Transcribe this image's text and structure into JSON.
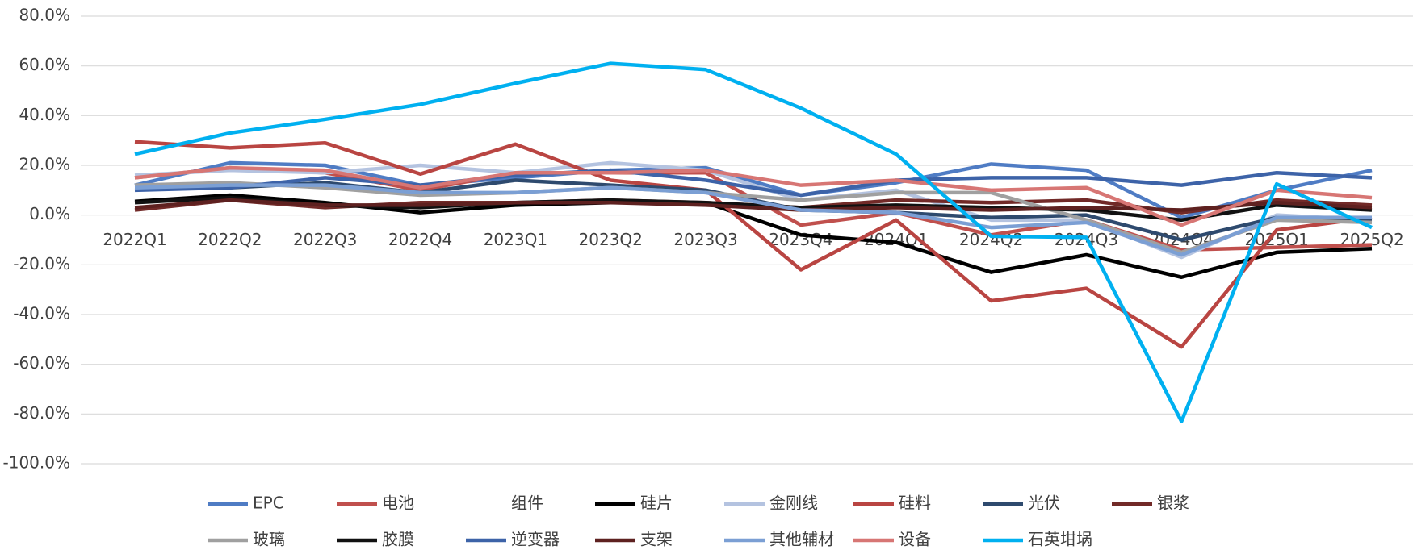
{
  "chart_data": {
    "type": "line",
    "categories": [
      "2022Q1",
      "2022Q2",
      "2022Q3",
      "2022Q4",
      "2023Q1",
      "2023Q2",
      "2023Q3",
      "2023Q4",
      "2024Q1",
      "2024Q2",
      "2024Q3",
      "2024Q4",
      "2025Q1",
      "2025Q2"
    ],
    "ylim": [
      -100,
      80
    ],
    "yticks": [
      {
        "value": -100,
        "label": "-100.0%"
      },
      {
        "value": -80,
        "label": "-80.0%"
      },
      {
        "value": -60,
        "label": "-60.0%"
      },
      {
        "value": -40,
        "label": "-40.0%"
      },
      {
        "value": -20,
        "label": "-20.0%"
      },
      {
        "value": 0,
        "label": "0.0%"
      },
      {
        "value": 20,
        "label": "20.0%"
      },
      {
        "value": 40,
        "label": "40.0%"
      },
      {
        "value": 60,
        "label": "60.0%"
      },
      {
        "value": 80,
        "label": "80.0%"
      }
    ],
    "grid": true,
    "legend": "bottom",
    "series": [
      {
        "name": "EPC",
        "color": "#4f7cc4",
        "values": [
          12,
          21,
          20,
          12,
          15,
          18,
          19,
          8,
          13,
          20.5,
          18,
          -1,
          10,
          18
        ]
      },
      {
        "name": "电池",
        "color": "#c0504d",
        "values": [
          15,
          19,
          17,
          10,
          17,
          17,
          17,
          -4,
          1,
          -8,
          -2,
          -14,
          -13,
          -12
        ]
      },
      {
        "name": "组件",
        "color": "#ffffff",
        "values": [
          null,
          null,
          null,
          null,
          null,
          null,
          null,
          null,
          null,
          null,
          null,
          null,
          null,
          null
        ]
      },
      {
        "name": "硅片",
        "color": "#000000",
        "values": [
          5.5,
          8,
          5,
          1,
          4,
          5,
          5,
          -8,
          -11,
          -23,
          -16,
          -25,
          -15,
          -13.5
        ]
      },
      {
        "name": "金刚线",
        "color": "#b4c3e0",
        "values": [
          16,
          18,
          17,
          20,
          17,
          21,
          18,
          6,
          10,
          -2,
          -2,
          -17,
          0,
          -2
        ]
      },
      {
        "name": "硅料",
        "color": "#b94542",
        "values": [
          29.5,
          27,
          29,
          16.5,
          28.5,
          14,
          10,
          -22,
          -2,
          -34.5,
          -29.5,
          -53,
          -6,
          -1
        ]
      },
      {
        "name": "光伏",
        "color": "#2e4a6e",
        "values": [
          11,
          11,
          13,
          9,
          14,
          12,
          10,
          2,
          1,
          -1,
          0,
          -10,
          -1,
          -2
        ]
      },
      {
        "name": "银浆",
        "color": "#722a28",
        "values": [
          2,
          6,
          3,
          5,
          5,
          6,
          5,
          3,
          6,
          5,
          6,
          1,
          6,
          4
        ]
      },
      {
        "name": "玻璃",
        "color": "#a0a0a0",
        "values": [
          12,
          13,
          11,
          8,
          9,
          11,
          9,
          6,
          9,
          9,
          -2,
          -15,
          -2,
          -3
        ]
      },
      {
        "name": "胶膜",
        "color": "#111111",
        "values": [
          5,
          7,
          4,
          3,
          5,
          6,
          5,
          3,
          4,
          3,
          2,
          -2,
          4,
          2
        ]
      },
      {
        "name": "逆变器",
        "color": "#3d63a8",
        "values": [
          10,
          11,
          15,
          12,
          16,
          18,
          14,
          8,
          14,
          15,
          15,
          12,
          17,
          15
        ]
      },
      {
        "name": "支架",
        "color": "#5e2120",
        "values": [
          3,
          6,
          4,
          4,
          5,
          5,
          4,
          2,
          3,
          2,
          3,
          2,
          5,
          3
        ]
      },
      {
        "name": "其他辅材",
        "color": "#7b9fd4",
        "values": [
          11,
          12,
          12,
          9,
          9,
          11,
          9,
          2,
          1,
          -5,
          -3,
          -16,
          -1,
          -1
        ]
      },
      {
        "name": "设备",
        "color": "#d77674",
        "values": [
          15,
          19,
          18,
          11,
          17,
          17,
          18,
          12,
          14,
          10,
          11,
          -4,
          10,
          7
        ]
      },
      {
        "name": "石英坩埚",
        "color": "#00b0f0",
        "values": [
          24.5,
          33,
          38.5,
          44.5,
          53,
          61,
          58.5,
          43,
          24.5,
          -8.5,
          -9,
          -83,
          12.5,
          -5
        ]
      }
    ]
  }
}
